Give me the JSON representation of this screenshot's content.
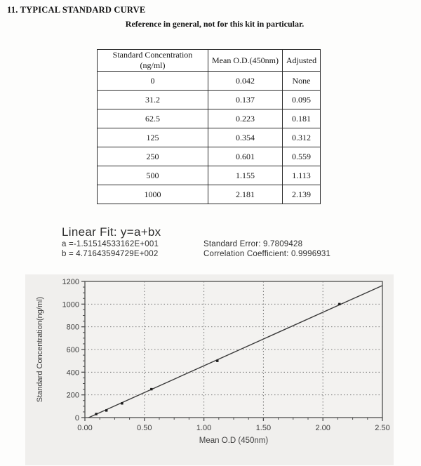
{
  "page": {
    "section_title": "11. TYPICAL STANDARD CURVE",
    "subtitle": "Reference in general, not for this kit in particular."
  },
  "table": {
    "headers": [
      "Standard Concentration (ng/ml)",
      "Mean O.D.(450nm)",
      "Adjusted"
    ],
    "rows": [
      [
        "0",
        "0.042",
        "None"
      ],
      [
        "31.2",
        "0.137",
        "0.095"
      ],
      [
        "62.5",
        "0.223",
        "0.181"
      ],
      [
        "125",
        "0.354",
        "0.312"
      ],
      [
        "250",
        "0.601",
        "0.559"
      ],
      [
        "500",
        "1.155",
        "1.113"
      ],
      [
        "1000",
        "2.181",
        "2.139"
      ]
    ]
  },
  "fit": {
    "title": "Linear Fit: y=a+bx",
    "a_line": "a =-1.51514533162E+001",
    "b_line": "b = 4.71643594729E+002",
    "standard_error": "Standard Error: 9.7809428",
    "correlation": "Correlation Coefficient: 0.9996931"
  },
  "chart_data": {
    "type": "scatter",
    "title": "",
    "xlabel": "Mean O.D (450nm)",
    "ylabel": "Standard Concentration(ng/ml)",
    "xlim": [
      0,
      2.5
    ],
    "ylim": [
      0,
      1200
    ],
    "x_ticks": [
      0,
      0.5,
      1.0,
      1.5,
      2.0,
      2.5
    ],
    "x_tick_labels": [
      "0.00",
      "0.50",
      "1.00",
      "1.50",
      "2.00",
      "2.50"
    ],
    "y_ticks": [
      0,
      200,
      400,
      600,
      800,
      1000,
      1200
    ],
    "y_tick_labels": [
      "0",
      "200",
      "400",
      "600",
      "800",
      "1000",
      "1200"
    ],
    "x_minor_step": 0.125,
    "y_minor_step": 50,
    "grid": "dotted",
    "legend": "none",
    "points": [
      {
        "x": 0.095,
        "y": 31.2
      },
      {
        "x": 0.181,
        "y": 62.5
      },
      {
        "x": 0.312,
        "y": 125
      },
      {
        "x": 0.559,
        "y": 250
      },
      {
        "x": 1.113,
        "y": 500
      },
      {
        "x": 2.139,
        "y": 1000
      }
    ],
    "fit_line": {
      "a": -15.1514533162,
      "b": 471.643594729
    },
    "colors": {
      "panel_bg": "#f0efed",
      "plot_bg": "#f3f2f0",
      "frame": "#4d4d4d",
      "grid": "#757575",
      "line": "#3a3a3a",
      "marker": "#1c1c1c",
      "text": "#3e3e3e"
    }
  }
}
